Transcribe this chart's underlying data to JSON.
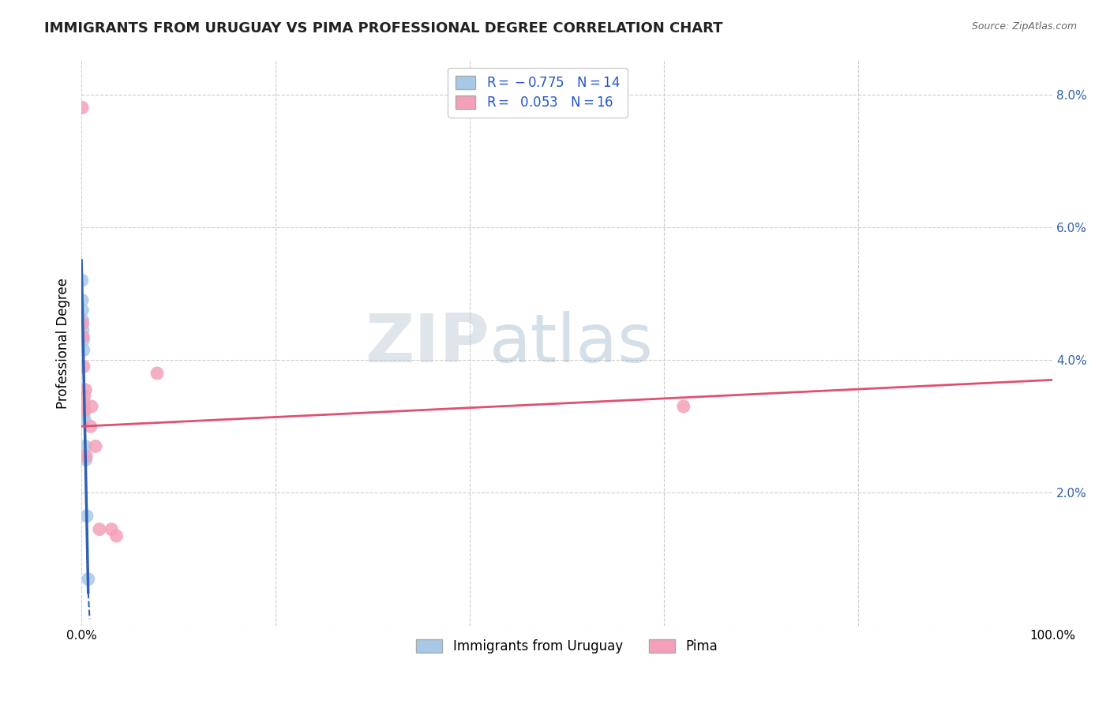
{
  "title": "IMMIGRANTS FROM URUGUAY VS PIMA PROFESSIONAL DEGREE CORRELATION CHART",
  "source": "Source: ZipAtlas.com",
  "ylabel": "Professional Degree",
  "xlim": [
    0,
    100
  ],
  "ylim": [
    0,
    8.5
  ],
  "xticks": [
    0,
    20,
    40,
    60,
    80,
    100
  ],
  "xticklabels": [
    "0.0%",
    "",
    "",
    "",
    "",
    "100.0%"
  ],
  "ytick_positions": [
    0,
    2,
    4,
    6,
    8
  ],
  "ytick_labels": [
    "",
    "2.0%",
    "4.0%",
    "6.0%",
    "8.0%"
  ],
  "series1_label": "Immigrants from Uruguay",
  "series2_label": "Pima",
  "blue_color": "#a8c8e8",
  "pink_color": "#f4a0b8",
  "blue_line_color": "#3060b0",
  "pink_line_color": "#e05070",
  "blue_x": [
    0.05,
    0.08,
    0.1,
    0.12,
    0.15,
    0.18,
    0.22,
    0.25,
    0.28,
    0.32,
    0.38,
    0.45,
    0.55,
    0.7
  ],
  "blue_y": [
    5.2,
    4.9,
    4.75,
    4.6,
    4.45,
    4.3,
    4.15,
    3.35,
    3.2,
    3.1,
    2.7,
    2.5,
    1.65,
    0.7
  ],
  "pink_x": [
    0.08,
    0.12,
    0.18,
    0.22,
    0.28,
    0.35,
    0.42,
    0.5,
    7.8,
    0.95,
    1.05,
    1.45,
    1.85,
    3.1,
    3.6,
    62.0
  ],
  "pink_y": [
    7.8,
    4.55,
    4.35,
    3.9,
    3.45,
    3.25,
    3.55,
    2.55,
    3.8,
    3.0,
    3.3,
    2.7,
    1.45,
    1.45,
    1.35,
    3.3
  ],
  "pink_line_x0": 0,
  "pink_line_x1": 100,
  "pink_line_y0": 3.0,
  "pink_line_y1": 3.7,
  "blue_line_x0": 0.0,
  "blue_line_x1": 0.7,
  "blue_line_y0": 5.5,
  "blue_line_y1": 0.5,
  "blue_dash_x0": 0.7,
  "blue_dash_x1": 0.85,
  "blue_dash_y0": 0.5,
  "blue_dash_y1": 0.1
}
